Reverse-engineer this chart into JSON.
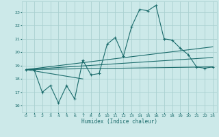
{
  "xlabel": "Humidex (Indice chaleur)",
  "xlim": [
    -0.5,
    23.5
  ],
  "ylim": [
    15.5,
    23.8
  ],
  "xticks": [
    0,
    1,
    2,
    3,
    4,
    5,
    6,
    7,
    8,
    9,
    10,
    11,
    12,
    13,
    14,
    15,
    16,
    17,
    18,
    19,
    20,
    21,
    22,
    23
  ],
  "yticks": [
    16,
    17,
    18,
    19,
    20,
    21,
    22,
    23
  ],
  "background_color": "#cce9e9",
  "grid_color": "#aad0d0",
  "line_color": "#1a6b6b",
  "main_line_x": [
    0,
    1,
    2,
    3,
    4,
    5,
    6,
    7,
    8,
    9,
    10,
    11,
    12,
    13,
    14,
    15,
    16,
    17,
    18,
    19,
    20,
    21,
    22,
    23
  ],
  "main_line_y": [
    18.7,
    18.7,
    17.0,
    17.5,
    16.2,
    17.5,
    16.5,
    19.4,
    18.3,
    18.4,
    20.6,
    21.1,
    19.7,
    21.9,
    23.2,
    23.1,
    23.5,
    21.0,
    20.9,
    20.3,
    19.8,
    18.9,
    18.8,
    18.9
  ],
  "trend1_x": [
    0,
    23
  ],
  "trend1_y": [
    18.7,
    18.9
  ],
  "trend2_x": [
    0,
    23
  ],
  "trend2_y": [
    18.7,
    19.6
  ],
  "trend3_x": [
    0,
    23
  ],
  "trend3_y": [
    18.7,
    20.4
  ],
  "trend4_x": [
    0,
    7
  ],
  "trend4_y": [
    18.7,
    18.0
  ]
}
